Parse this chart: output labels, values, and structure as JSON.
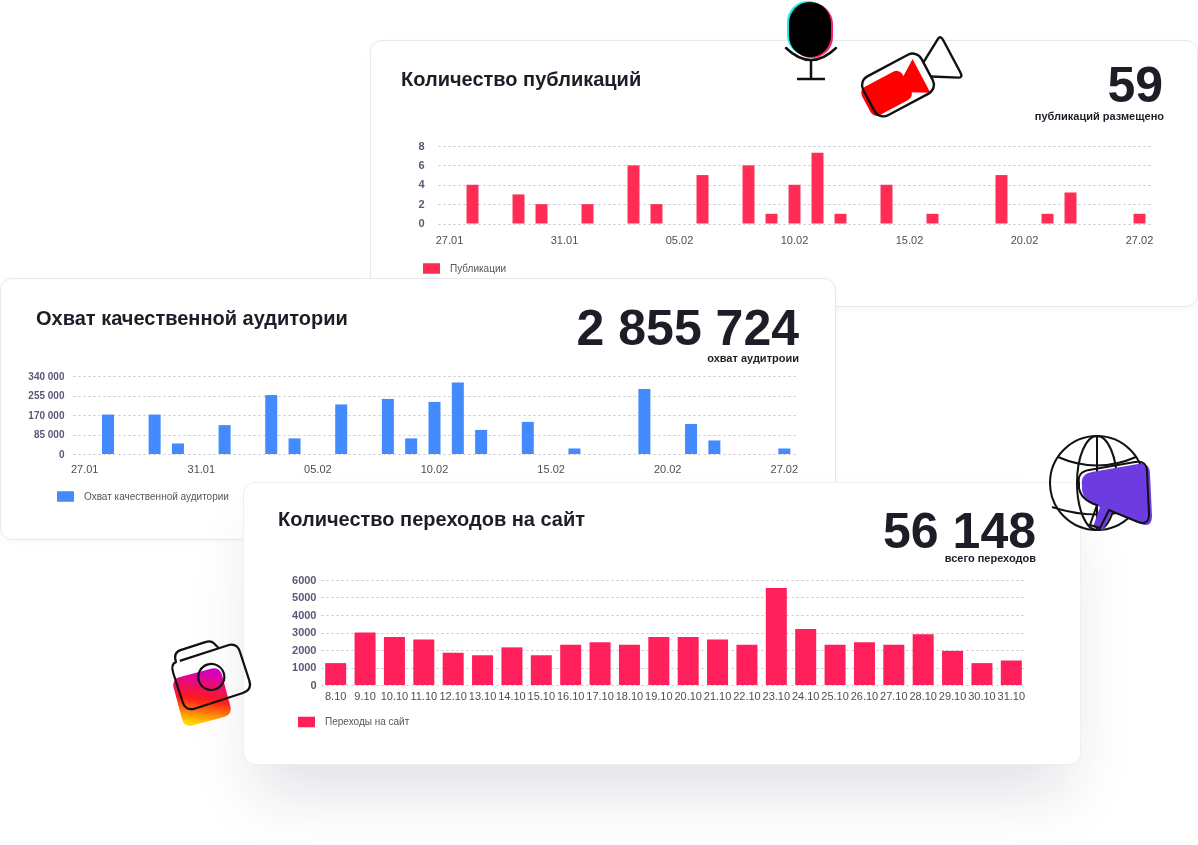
{
  "chart_data": [
    {
      "type": "bar",
      "title": "Количество публикаций",
      "annotations": [
        "59",
        "публикаций размещено"
      ],
      "categories": [
        "27.01",
        null,
        null,
        null,
        null,
        "31.01",
        null,
        null,
        null,
        null,
        "05.02",
        null,
        null,
        null,
        null,
        "10.02",
        null,
        null,
        null,
        null,
        "15.02",
        null,
        null,
        null,
        null,
        "20.02",
        null,
        null,
        null,
        null,
        "27.02"
      ],
      "series": [
        {
          "name": "Публикации",
          "color": "#ff2d55",
          "values": [
            null,
            4,
            null,
            3,
            2,
            null,
            2,
            null,
            6,
            2,
            null,
            5,
            null,
            6,
            1,
            4,
            7.3,
            1,
            null,
            4,
            null,
            1,
            null,
            null,
            5,
            null,
            1,
            3.2,
            null,
            null,
            1
          ]
        }
      ],
      "ylim": [
        0,
        8
      ],
      "yticks": [
        0,
        2,
        4,
        6,
        8
      ],
      "grid": "y",
      "legend": "bottom"
    },
    {
      "type": "bar",
      "title": "Охват качественной аудитории",
      "annotations": [
        "2 855 724",
        "охват аудитроии"
      ],
      "categories": [
        "27.01",
        null,
        null,
        null,
        null,
        "31.01",
        null,
        null,
        null,
        null,
        "05.02",
        null,
        null,
        null,
        null,
        "10.02",
        null,
        null,
        null,
        null,
        "15.02",
        null,
        null,
        null,
        null,
        "20.02",
        null,
        null,
        null,
        null,
        "27.02"
      ],
      "series": [
        {
          "name": "Охват качественной аудитории",
          "color": "#448aff",
          "values": [
            null,
            172000,
            null,
            172000,
            46000,
            null,
            126000,
            null,
            257000,
            68000,
            null,
            216000,
            null,
            240000,
            68000,
            227000,
            312000,
            105000,
            null,
            140000,
            null,
            24000,
            null,
            null,
            283000,
            null,
            131000,
            59000,
            null,
            null,
            24000
          ]
        }
      ],
      "ylim": [
        0,
        340000
      ],
      "yticks": [
        0,
        {
          "value": 85000,
          "label": "85 000"
        },
        {
          "value": 170000,
          "label": "170 000"
        },
        {
          "value": 255000,
          "label": "255 000"
        },
        {
          "value": 340000,
          "label": "340 000"
        }
      ],
      "grid": "y",
      "legend": "bottom"
    },
    {
      "type": "bar",
      "title": "Количество переходов на сайт",
      "annotations": [
        "56 148",
        "всего переходов"
      ],
      "categories": [
        "8.10",
        "9.10",
        "10.10",
        "11.10",
        "12.10",
        "13.10",
        "14.10",
        "15.10",
        "16.10",
        "17.10",
        "18.10",
        "19.10",
        "20.10",
        "21.10",
        "22.10",
        "23.10",
        "24.10",
        "25.10",
        "26.10",
        "27.10",
        "28.10",
        "29.10",
        "30.10",
        "31.10"
      ],
      "series": [
        {
          "name": "Переходы на сайт",
          "color": "#ff1f5a",
          "values": [
            1250,
            3000,
            2750,
            2600,
            1850,
            1700,
            2150,
            1700,
            2300,
            2450,
            2300,
            2750,
            2750,
            2600,
            2300,
            5550,
            3200,
            2300,
            2450,
            2300,
            2900,
            1950,
            1250,
            1400
          ]
        }
      ],
      "ylim": [
        0,
        6000
      ],
      "yticks": [
        0,
        1000,
        2000,
        3000,
        4000,
        5000,
        6000
      ],
      "grid": "y",
      "legend": "bottom"
    }
  ]
}
